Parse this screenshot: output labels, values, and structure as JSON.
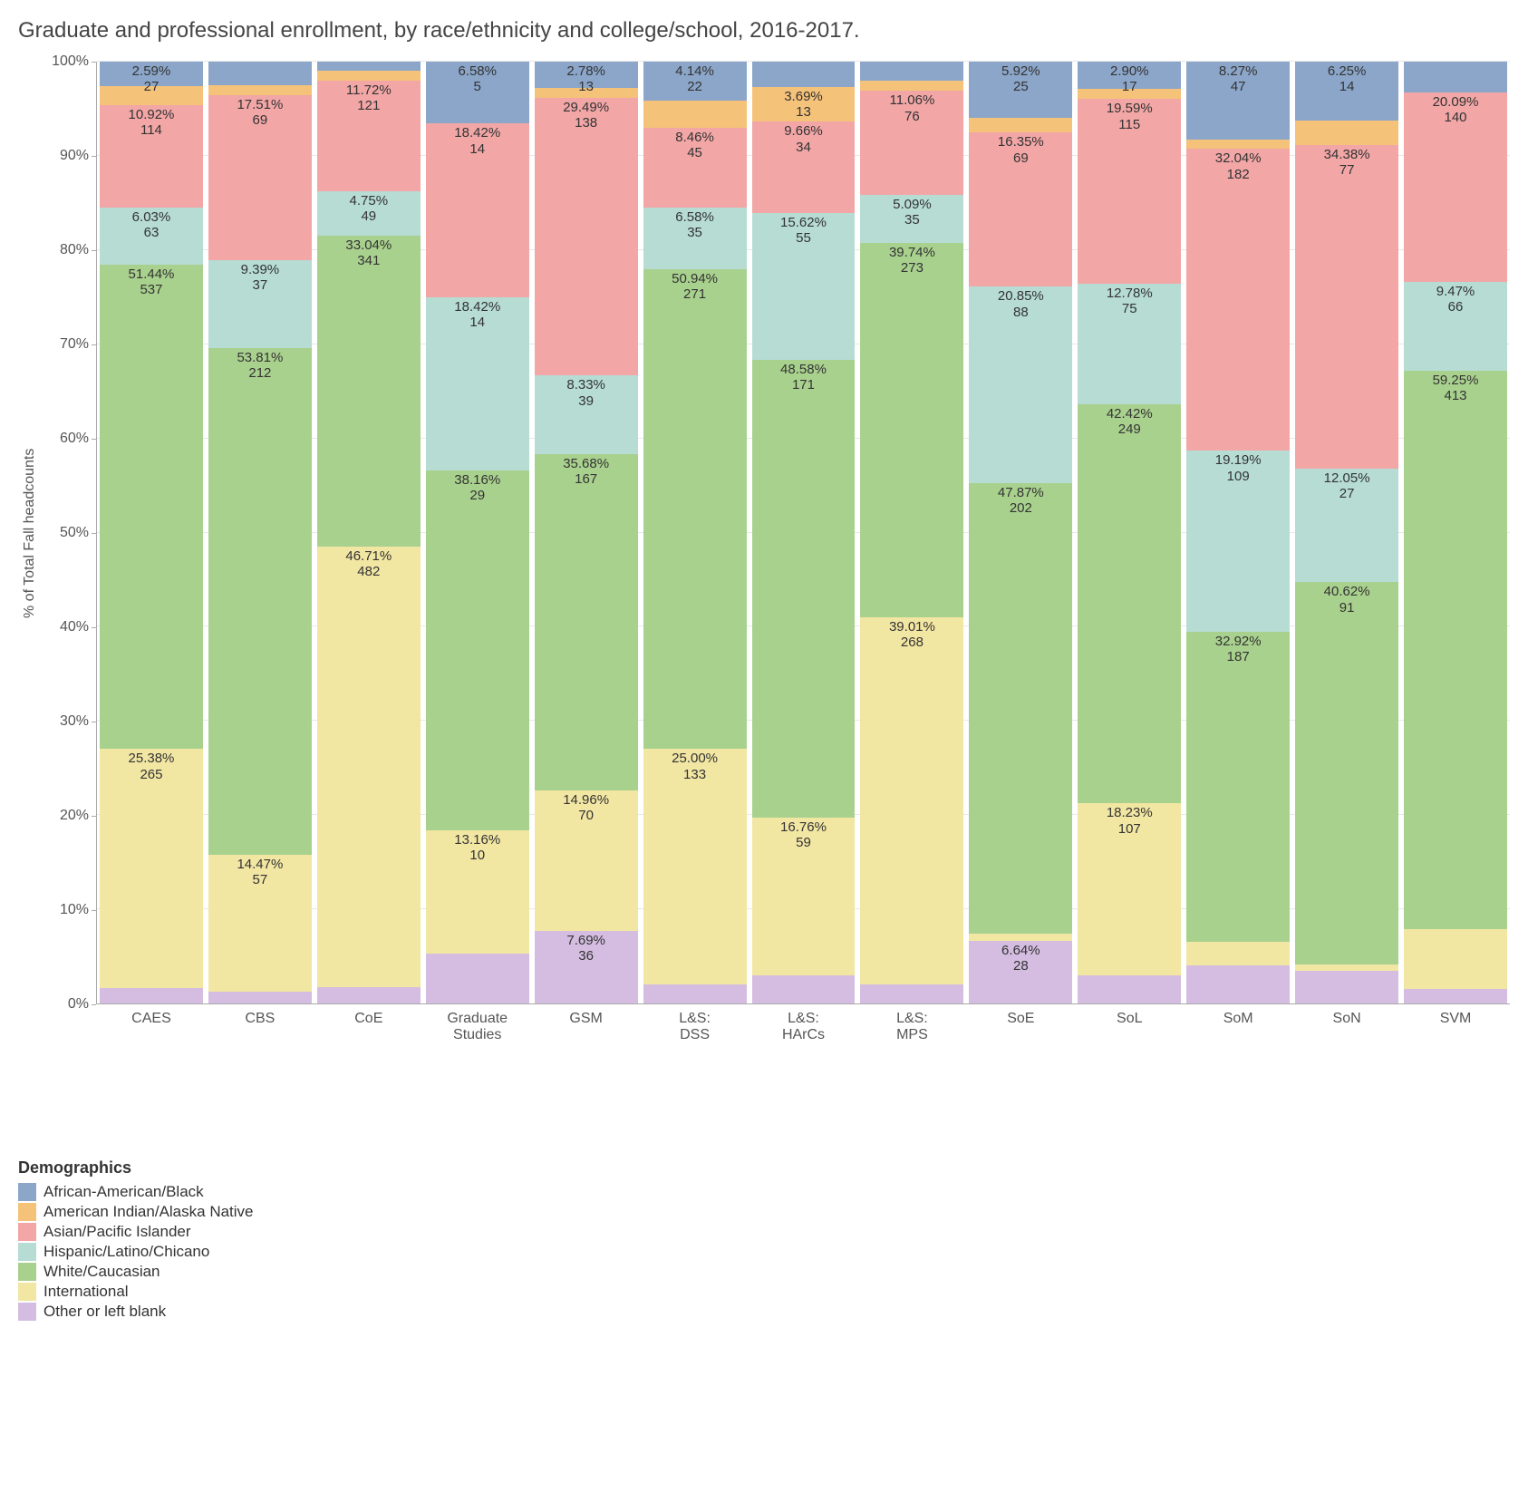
{
  "title": "Graduate and professional enrollment, by race/ethnicity and college/school, 2016-2017.",
  "y_axis_label": "% of Total Fall headcounts",
  "y_ticks": [
    0,
    10,
    20,
    30,
    40,
    50,
    60,
    70,
    80,
    90,
    100
  ],
  "y_tick_suffix": "%",
  "grid_color": "#e8e8e8",
  "axis_color": "#aaaaaa",
  "background_color": "#ffffff",
  "title_color": "#444444",
  "tick_color": "#555555",
  "label_fontsize": 16,
  "title_fontsize": 24,
  "seg_label_fontsize": 15,
  "legend_title": "Demographics",
  "series": [
    {
      "key": "african_american",
      "label": "African-American/Black",
      "color": "#8ba6c9"
    },
    {
      "key": "american_indian",
      "label": "American Indian/Alaska Native",
      "color": "#f5c27a"
    },
    {
      "key": "asian_pacific",
      "label": "Asian/Pacific Islander",
      "color": "#f2a6a6"
    },
    {
      "key": "hispanic",
      "label": "Hispanic/Latino/Chicano",
      "color": "#b6dcd4"
    },
    {
      "key": "white",
      "label": "White/Caucasian",
      "color": "#a9d18e"
    },
    {
      "key": "international",
      "label": "International",
      "color": "#f2e6a3"
    },
    {
      "key": "other",
      "label": "Other or left blank",
      "color": "#d4bde0"
    }
  ],
  "stack_order": [
    "other",
    "international",
    "white",
    "hispanic",
    "asian_pacific",
    "american_indian",
    "african_american"
  ],
  "categories": [
    {
      "name": "CAES",
      "segments": {
        "other": {
          "pct": 1.64,
          "count": null,
          "show": false
        },
        "international": {
          "pct": 25.38,
          "count": 265,
          "show": true
        },
        "white": {
          "pct": 51.44,
          "count": 537,
          "show": true
        },
        "hispanic": {
          "pct": 6.03,
          "count": 63,
          "show": true
        },
        "asian_pacific": {
          "pct": 10.92,
          "count": 114,
          "show": true
        },
        "american_indian": {
          "pct": 2.0,
          "count": null,
          "show": false
        },
        "african_american": {
          "pct": 2.59,
          "count": 27,
          "show": true
        }
      }
    },
    {
      "name": "CBS",
      "segments": {
        "other": {
          "pct": 1.3,
          "count": null,
          "show": false
        },
        "international": {
          "pct": 14.47,
          "count": 57,
          "show": true
        },
        "white": {
          "pct": 53.81,
          "count": 212,
          "show": true
        },
        "hispanic": {
          "pct": 9.39,
          "count": 37,
          "show": true
        },
        "asian_pacific": {
          "pct": 17.51,
          "count": 69,
          "show": true
        },
        "american_indian": {
          "pct": 1.0,
          "count": null,
          "show": false
        },
        "african_american": {
          "pct": 2.52,
          "count": null,
          "show": false
        }
      }
    },
    {
      "name": "CoE",
      "segments": {
        "other": {
          "pct": 1.78,
          "count": null,
          "show": false
        },
        "international": {
          "pct": 46.71,
          "count": 482,
          "show": true
        },
        "white": {
          "pct": 33.04,
          "count": 341,
          "show": true
        },
        "hispanic": {
          "pct": 4.75,
          "count": 49,
          "show": true
        },
        "asian_pacific": {
          "pct": 11.72,
          "count": 121,
          "show": true
        },
        "american_indian": {
          "pct": 1.0,
          "count": null,
          "show": false
        },
        "african_american": {
          "pct": 1.0,
          "count": null,
          "show": false
        }
      }
    },
    {
      "name": "Graduate Studies",
      "segments": {
        "other": {
          "pct": 5.26,
          "count": null,
          "show": false
        },
        "international": {
          "pct": 13.16,
          "count": 10,
          "show": true
        },
        "white": {
          "pct": 38.16,
          "count": 29,
          "show": true
        },
        "hispanic": {
          "pct": 18.42,
          "count": 14,
          "show": true
        },
        "asian_pacific": {
          "pct": 18.42,
          "count": 14,
          "show": true
        },
        "american_indian": {
          "pct": 0,
          "count": null,
          "show": false
        },
        "african_american": {
          "pct": 6.58,
          "count": 5,
          "show": true
        }
      }
    },
    {
      "name": "GSM",
      "segments": {
        "other": {
          "pct": 7.69,
          "count": 36,
          "show": true
        },
        "international": {
          "pct": 14.96,
          "count": 70,
          "show": true
        },
        "white": {
          "pct": 35.68,
          "count": 167,
          "show": true
        },
        "hispanic": {
          "pct": 8.33,
          "count": 39,
          "show": true
        },
        "asian_pacific": {
          "pct": 29.49,
          "count": 138,
          "show": true
        },
        "american_indian": {
          "pct": 1.07,
          "count": null,
          "show": false
        },
        "african_american": {
          "pct": 2.78,
          "count": 13,
          "show": true
        }
      }
    },
    {
      "name": "L&S: DSS",
      "segments": {
        "other": {
          "pct": 2.0,
          "count": null,
          "show": false
        },
        "international": {
          "pct": 25.0,
          "count": 133,
          "show": true
        },
        "white": {
          "pct": 50.94,
          "count": 271,
          "show": true
        },
        "hispanic": {
          "pct": 6.58,
          "count": 35,
          "show": true
        },
        "asian_pacific": {
          "pct": 8.46,
          "count": 45,
          "show": true
        },
        "american_indian": {
          "pct": 2.88,
          "count": null,
          "show": false
        },
        "african_american": {
          "pct": 4.14,
          "count": 22,
          "show": true
        }
      }
    },
    {
      "name": "L&S: HArCs",
      "segments": {
        "other": {
          "pct": 3.0,
          "count": null,
          "show": false
        },
        "international": {
          "pct": 16.76,
          "count": 59,
          "show": true
        },
        "white": {
          "pct": 48.58,
          "count": 171,
          "show": true
        },
        "hispanic": {
          "pct": 15.62,
          "count": 55,
          "show": true
        },
        "asian_pacific": {
          "pct": 9.66,
          "count": 34,
          "show": true
        },
        "american_indian": {
          "pct": 3.69,
          "count": 13,
          "show": true
        },
        "african_american": {
          "pct": 2.69,
          "count": null,
          "show": false
        }
      }
    },
    {
      "name": "L&S: MPS",
      "segments": {
        "other": {
          "pct": 2.0,
          "count": null,
          "show": false
        },
        "international": {
          "pct": 39.01,
          "count": 268,
          "show": true
        },
        "white": {
          "pct": 39.74,
          "count": 273,
          "show": true
        },
        "hispanic": {
          "pct": 5.09,
          "count": 35,
          "show": true
        },
        "asian_pacific": {
          "pct": 11.06,
          "count": 76,
          "show": true
        },
        "american_indian": {
          "pct": 1.1,
          "count": null,
          "show": false
        },
        "african_american": {
          "pct": 2.0,
          "count": null,
          "show": false
        }
      }
    },
    {
      "name": "SoE",
      "segments": {
        "other": {
          "pct": 6.64,
          "count": 28,
          "show": true
        },
        "international": {
          "pct": 0.75,
          "count": null,
          "show": false
        },
        "white": {
          "pct": 47.87,
          "count": 202,
          "show": true
        },
        "hispanic": {
          "pct": 20.85,
          "count": 88,
          "show": true
        },
        "asian_pacific": {
          "pct": 16.35,
          "count": 69,
          "show": true
        },
        "american_indian": {
          "pct": 1.62,
          "count": null,
          "show": false
        },
        "african_american": {
          "pct": 5.92,
          "count": 25,
          "show": true
        }
      }
    },
    {
      "name": "SoL",
      "segments": {
        "other": {
          "pct": 3.0,
          "count": null,
          "show": false
        },
        "international": {
          "pct": 18.23,
          "count": 107,
          "show": true
        },
        "white": {
          "pct": 42.42,
          "count": 249,
          "show": true
        },
        "hispanic": {
          "pct": 12.78,
          "count": 75,
          "show": true
        },
        "asian_pacific": {
          "pct": 19.59,
          "count": 115,
          "show": true
        },
        "american_indian": {
          "pct": 1.08,
          "count": null,
          "show": false
        },
        "african_american": {
          "pct": 2.9,
          "count": 17,
          "show": true
        }
      }
    },
    {
      "name": "SoM",
      "segments": {
        "other": {
          "pct": 4.0,
          "count": null,
          "show": false
        },
        "international": {
          "pct": 2.58,
          "count": null,
          "show": false
        },
        "white": {
          "pct": 32.92,
          "count": 187,
          "show": true
        },
        "hispanic": {
          "pct": 19.19,
          "count": 109,
          "show": true
        },
        "asian_pacific": {
          "pct": 32.04,
          "count": 182,
          "show": true
        },
        "american_indian": {
          "pct": 1.0,
          "count": null,
          "show": false
        },
        "african_american": {
          "pct": 8.27,
          "count": 47,
          "show": true
        }
      }
    },
    {
      "name": "SoN",
      "segments": {
        "other": {
          "pct": 3.5,
          "count": null,
          "show": false
        },
        "international": {
          "pct": 0.6,
          "count": null,
          "show": false
        },
        "white": {
          "pct": 40.62,
          "count": 91,
          "show": true
        },
        "hispanic": {
          "pct": 12.05,
          "count": 27,
          "show": true
        },
        "asian_pacific": {
          "pct": 34.38,
          "count": 77,
          "show": true
        },
        "american_indian": {
          "pct": 2.6,
          "count": null,
          "show": false
        },
        "african_american": {
          "pct": 6.25,
          "count": 14,
          "show": true
        }
      }
    },
    {
      "name": "SVM",
      "segments": {
        "other": {
          "pct": 1.5,
          "count": null,
          "show": false
        },
        "international": {
          "pct": 6.44,
          "count": null,
          "show": false
        },
        "white": {
          "pct": 59.25,
          "count": 413,
          "show": true
        },
        "hispanic": {
          "pct": 9.47,
          "count": 66,
          "show": true
        },
        "asian_pacific": {
          "pct": 20.09,
          "count": 140,
          "show": true
        },
        "american_indian": {
          "pct": 0,
          "count": null,
          "show": false
        },
        "african_american": {
          "pct": 3.25,
          "count": null,
          "show": false
        }
      }
    }
  ]
}
